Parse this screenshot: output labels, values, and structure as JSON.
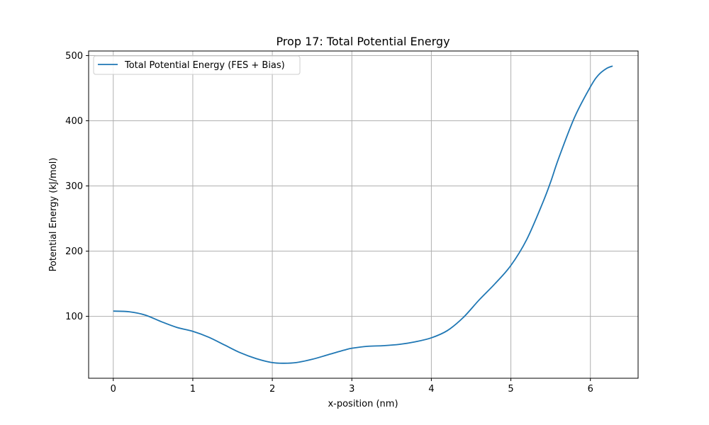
{
  "chart_data": {
    "type": "line",
    "title": "Prop 17: Total Potential Energy",
    "xlabel": "x-position (nm)",
    "ylabel": "Potential Energy (kJ/mol)",
    "xlim": [
      -0.31,
      6.6
    ],
    "ylim": [
      5,
      507
    ],
    "xticks": [
      "0",
      "1",
      "2",
      "3",
      "4",
      "5",
      "6"
    ],
    "yticks": [
      "100",
      "200",
      "300",
      "400",
      "500"
    ],
    "grid": true,
    "legend_position": "top-left",
    "series": [
      {
        "name": "Total Potential Energy (FES + Bias)",
        "color": "#1f77b4",
        "x": [
          0,
          0.2,
          0.4,
          0.6,
          0.8,
          1.0,
          1.2,
          1.4,
          1.6,
          1.8,
          2.0,
          2.15,
          2.3,
          2.5,
          2.7,
          2.9,
          3.0,
          3.2,
          3.4,
          3.6,
          3.8,
          4.0,
          4.2,
          4.4,
          4.6,
          4.8,
          5.0,
          5.2,
          5.4,
          5.5,
          5.6,
          5.8,
          6.0,
          6.1,
          6.2,
          6.28
        ],
        "y": [
          108,
          107,
          102,
          92,
          83,
          77,
          68,
          56,
          44,
          35,
          29,
          28,
          29,
          34,
          41,
          48,
          51,
          54,
          55,
          57,
          61,
          67,
          78,
          98,
          125,
          150,
          178,
          218,
          274,
          306,
          342,
          405,
          452,
          470,
          480,
          484
        ]
      }
    ]
  }
}
